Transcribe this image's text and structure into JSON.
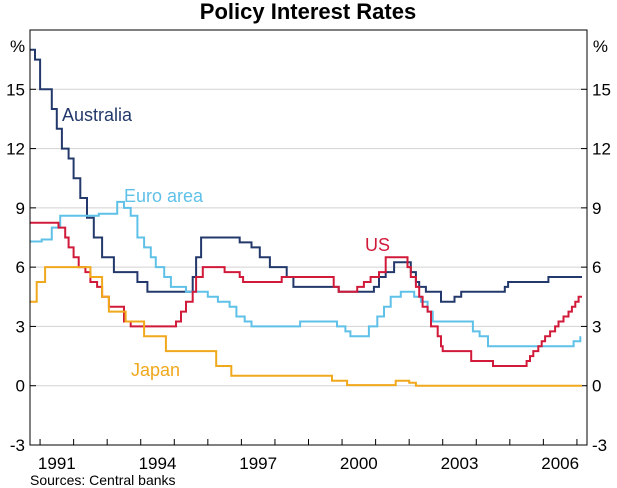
{
  "chart_data": {
    "type": "line",
    "title": "Policy Interest Rates",
    "unit_left": "%",
    "unit_right": "%",
    "source": "Sources: Central banks",
    "xlim": [
      1989.7,
      2006.3
    ],
    "ylim": [
      -3,
      18
    ],
    "y_ticks": [
      "-3",
      "0",
      "3",
      "6",
      "9",
      "12",
      "15"
    ],
    "x_ticks": [
      "1991",
      "1994",
      "1997",
      "2000",
      "2003",
      "2006"
    ],
    "grid": true,
    "series": [
      {
        "name": "Australia",
        "color": "#23396b",
        "points": [
          [
            1989.7,
            17
          ],
          [
            1989.85,
            16.5
          ],
          [
            1990.0,
            15
          ],
          [
            1990.35,
            14
          ],
          [
            1990.5,
            13
          ],
          [
            1990.65,
            12
          ],
          [
            1990.85,
            11.5
          ],
          [
            1991.0,
            10.5
          ],
          [
            1991.2,
            9.5
          ],
          [
            1991.4,
            8.5
          ],
          [
            1991.6,
            7.5
          ],
          [
            1991.85,
            6.5
          ],
          [
            1992.2,
            5.75
          ],
          [
            1992.9,
            5.25
          ],
          [
            1993.2,
            4.75
          ],
          [
            1994.55,
            5.5
          ],
          [
            1994.65,
            6.5
          ],
          [
            1994.8,
            7.5
          ],
          [
            1995.95,
            7.25
          ],
          [
            1996.3,
            7.0
          ],
          [
            1996.55,
            6.5
          ],
          [
            1996.85,
            6.0
          ],
          [
            1997.35,
            5.5
          ],
          [
            1997.55,
            5.0
          ],
          [
            1998.9,
            4.75
          ],
          [
            1999.95,
            5.0
          ],
          [
            2000.1,
            5.5
          ],
          [
            2000.3,
            5.75
          ],
          [
            2000.55,
            6.25
          ],
          [
            2001.05,
            5.75
          ],
          [
            2001.2,
            5.25
          ],
          [
            2001.3,
            5.0
          ],
          [
            2001.5,
            4.75
          ],
          [
            2001.95,
            4.25
          ],
          [
            2002.35,
            4.5
          ],
          [
            2002.55,
            4.75
          ],
          [
            2003.85,
            5.0
          ],
          [
            2003.95,
            5.25
          ],
          [
            2005.15,
            5.5
          ],
          [
            2006.15,
            5.5
          ]
        ]
      },
      {
        "name": "Euro area",
        "color": "#5fc1e8",
        "points": [
          [
            1989.7,
            7.3
          ],
          [
            1990.05,
            7.4
          ],
          [
            1990.35,
            8.0
          ],
          [
            1990.6,
            8.6
          ],
          [
            1991.75,
            8.7
          ],
          [
            1992.3,
            9.3
          ],
          [
            1992.5,
            9.0
          ],
          [
            1992.7,
            8.6
          ],
          [
            1992.9,
            7.5
          ],
          [
            1993.1,
            7.0
          ],
          [
            1993.3,
            6.5
          ],
          [
            1993.45,
            6.0
          ],
          [
            1993.7,
            5.5
          ],
          [
            1993.9,
            5.0
          ],
          [
            1994.35,
            4.75
          ],
          [
            1995.0,
            4.5
          ],
          [
            1995.3,
            4.25
          ],
          [
            1995.65,
            4.0
          ],
          [
            1995.85,
            3.5
          ],
          [
            1996.1,
            3.25
          ],
          [
            1996.3,
            3.0
          ],
          [
            1997.75,
            3.25
          ],
          [
            1998.85,
            3.0
          ],
          [
            1999.1,
            2.75
          ],
          [
            1999.25,
            2.5
          ],
          [
            1999.8,
            3.0
          ],
          [
            2000.05,
            3.5
          ],
          [
            2000.25,
            4.0
          ],
          [
            2000.45,
            4.5
          ],
          [
            2000.75,
            4.75
          ],
          [
            2001.15,
            4.5
          ],
          [
            2001.35,
            4.25
          ],
          [
            2001.55,
            3.75
          ],
          [
            2001.7,
            3.25
          ],
          [
            2002.9,
            2.75
          ],
          [
            2003.1,
            2.5
          ],
          [
            2003.35,
            2.0
          ],
          [
            2005.9,
            2.25
          ],
          [
            2006.1,
            2.5
          ]
        ]
      },
      {
        "name": "US",
        "color": "#d11a3a",
        "points": [
          [
            1989.7,
            8.25
          ],
          [
            1990.55,
            8.0
          ],
          [
            1990.75,
            7.5
          ],
          [
            1990.85,
            7.0
          ],
          [
            1991.0,
            6.5
          ],
          [
            1991.15,
            6.0
          ],
          [
            1991.35,
            5.75
          ],
          [
            1991.5,
            5.25
          ],
          [
            1991.7,
            5.0
          ],
          [
            1991.85,
            4.5
          ],
          [
            1992.05,
            4.0
          ],
          [
            1992.5,
            3.25
          ],
          [
            1992.7,
            3.0
          ],
          [
            1994.05,
            3.25
          ],
          [
            1994.2,
            3.75
          ],
          [
            1994.35,
            4.25
          ],
          [
            1994.55,
            4.75
          ],
          [
            1994.65,
            5.5
          ],
          [
            1994.85,
            6.0
          ],
          [
            1995.5,
            5.75
          ],
          [
            1995.95,
            5.5
          ],
          [
            1996.05,
            5.25
          ],
          [
            1997.2,
            5.5
          ],
          [
            1998.75,
            5.0
          ],
          [
            1998.9,
            4.75
          ],
          [
            1999.45,
            5.0
          ],
          [
            1999.65,
            5.25
          ],
          [
            1999.85,
            5.5
          ],
          [
            2000.1,
            5.75
          ],
          [
            2000.3,
            6.5
          ],
          [
            2000.45,
            6.5
          ],
          [
            2000.95,
            6.0
          ],
          [
            2001.05,
            5.5
          ],
          [
            2001.2,
            5.0
          ],
          [
            2001.3,
            4.5
          ],
          [
            2001.4,
            4.0
          ],
          [
            2001.55,
            3.75
          ],
          [
            2001.65,
            3.0
          ],
          [
            2001.85,
            2.5
          ],
          [
            2001.95,
            2.0
          ],
          [
            2002.0,
            1.75
          ],
          [
            2002.85,
            1.25
          ],
          [
            2003.5,
            1.0
          ],
          [
            2004.5,
            1.25
          ],
          [
            2004.6,
            1.5
          ],
          [
            2004.7,
            1.75
          ],
          [
            2004.85,
            2.0
          ],
          [
            2004.95,
            2.25
          ],
          [
            2005.05,
            2.5
          ],
          [
            2005.2,
            2.75
          ],
          [
            2005.35,
            3.0
          ],
          [
            2005.45,
            3.25
          ],
          [
            2005.6,
            3.5
          ],
          [
            2005.75,
            3.75
          ],
          [
            2005.85,
            4.0
          ],
          [
            2005.95,
            4.25
          ],
          [
            2006.05,
            4.5
          ],
          [
            2006.15,
            4.5
          ]
        ]
      },
      {
        "name": "Japan",
        "color": "#f0a81c",
        "points": [
          [
            1989.7,
            4.25
          ],
          [
            1989.9,
            5.25
          ],
          [
            1990.15,
            6.0
          ],
          [
            1991.5,
            5.5
          ],
          [
            1991.85,
            4.5
          ],
          [
            1992.05,
            3.75
          ],
          [
            1992.55,
            3.25
          ],
          [
            1993.1,
            2.5
          ],
          [
            1993.75,
            1.75
          ],
          [
            1995.25,
            1.0
          ],
          [
            1995.7,
            0.5
          ],
          [
            1998.7,
            0.25
          ],
          [
            1999.15,
            0.03
          ],
          [
            2000.6,
            0.25
          ],
          [
            2001.0,
            0.15
          ],
          [
            2001.2,
            0.0
          ],
          [
            2006.15,
            0.0
          ]
        ]
      }
    ]
  }
}
